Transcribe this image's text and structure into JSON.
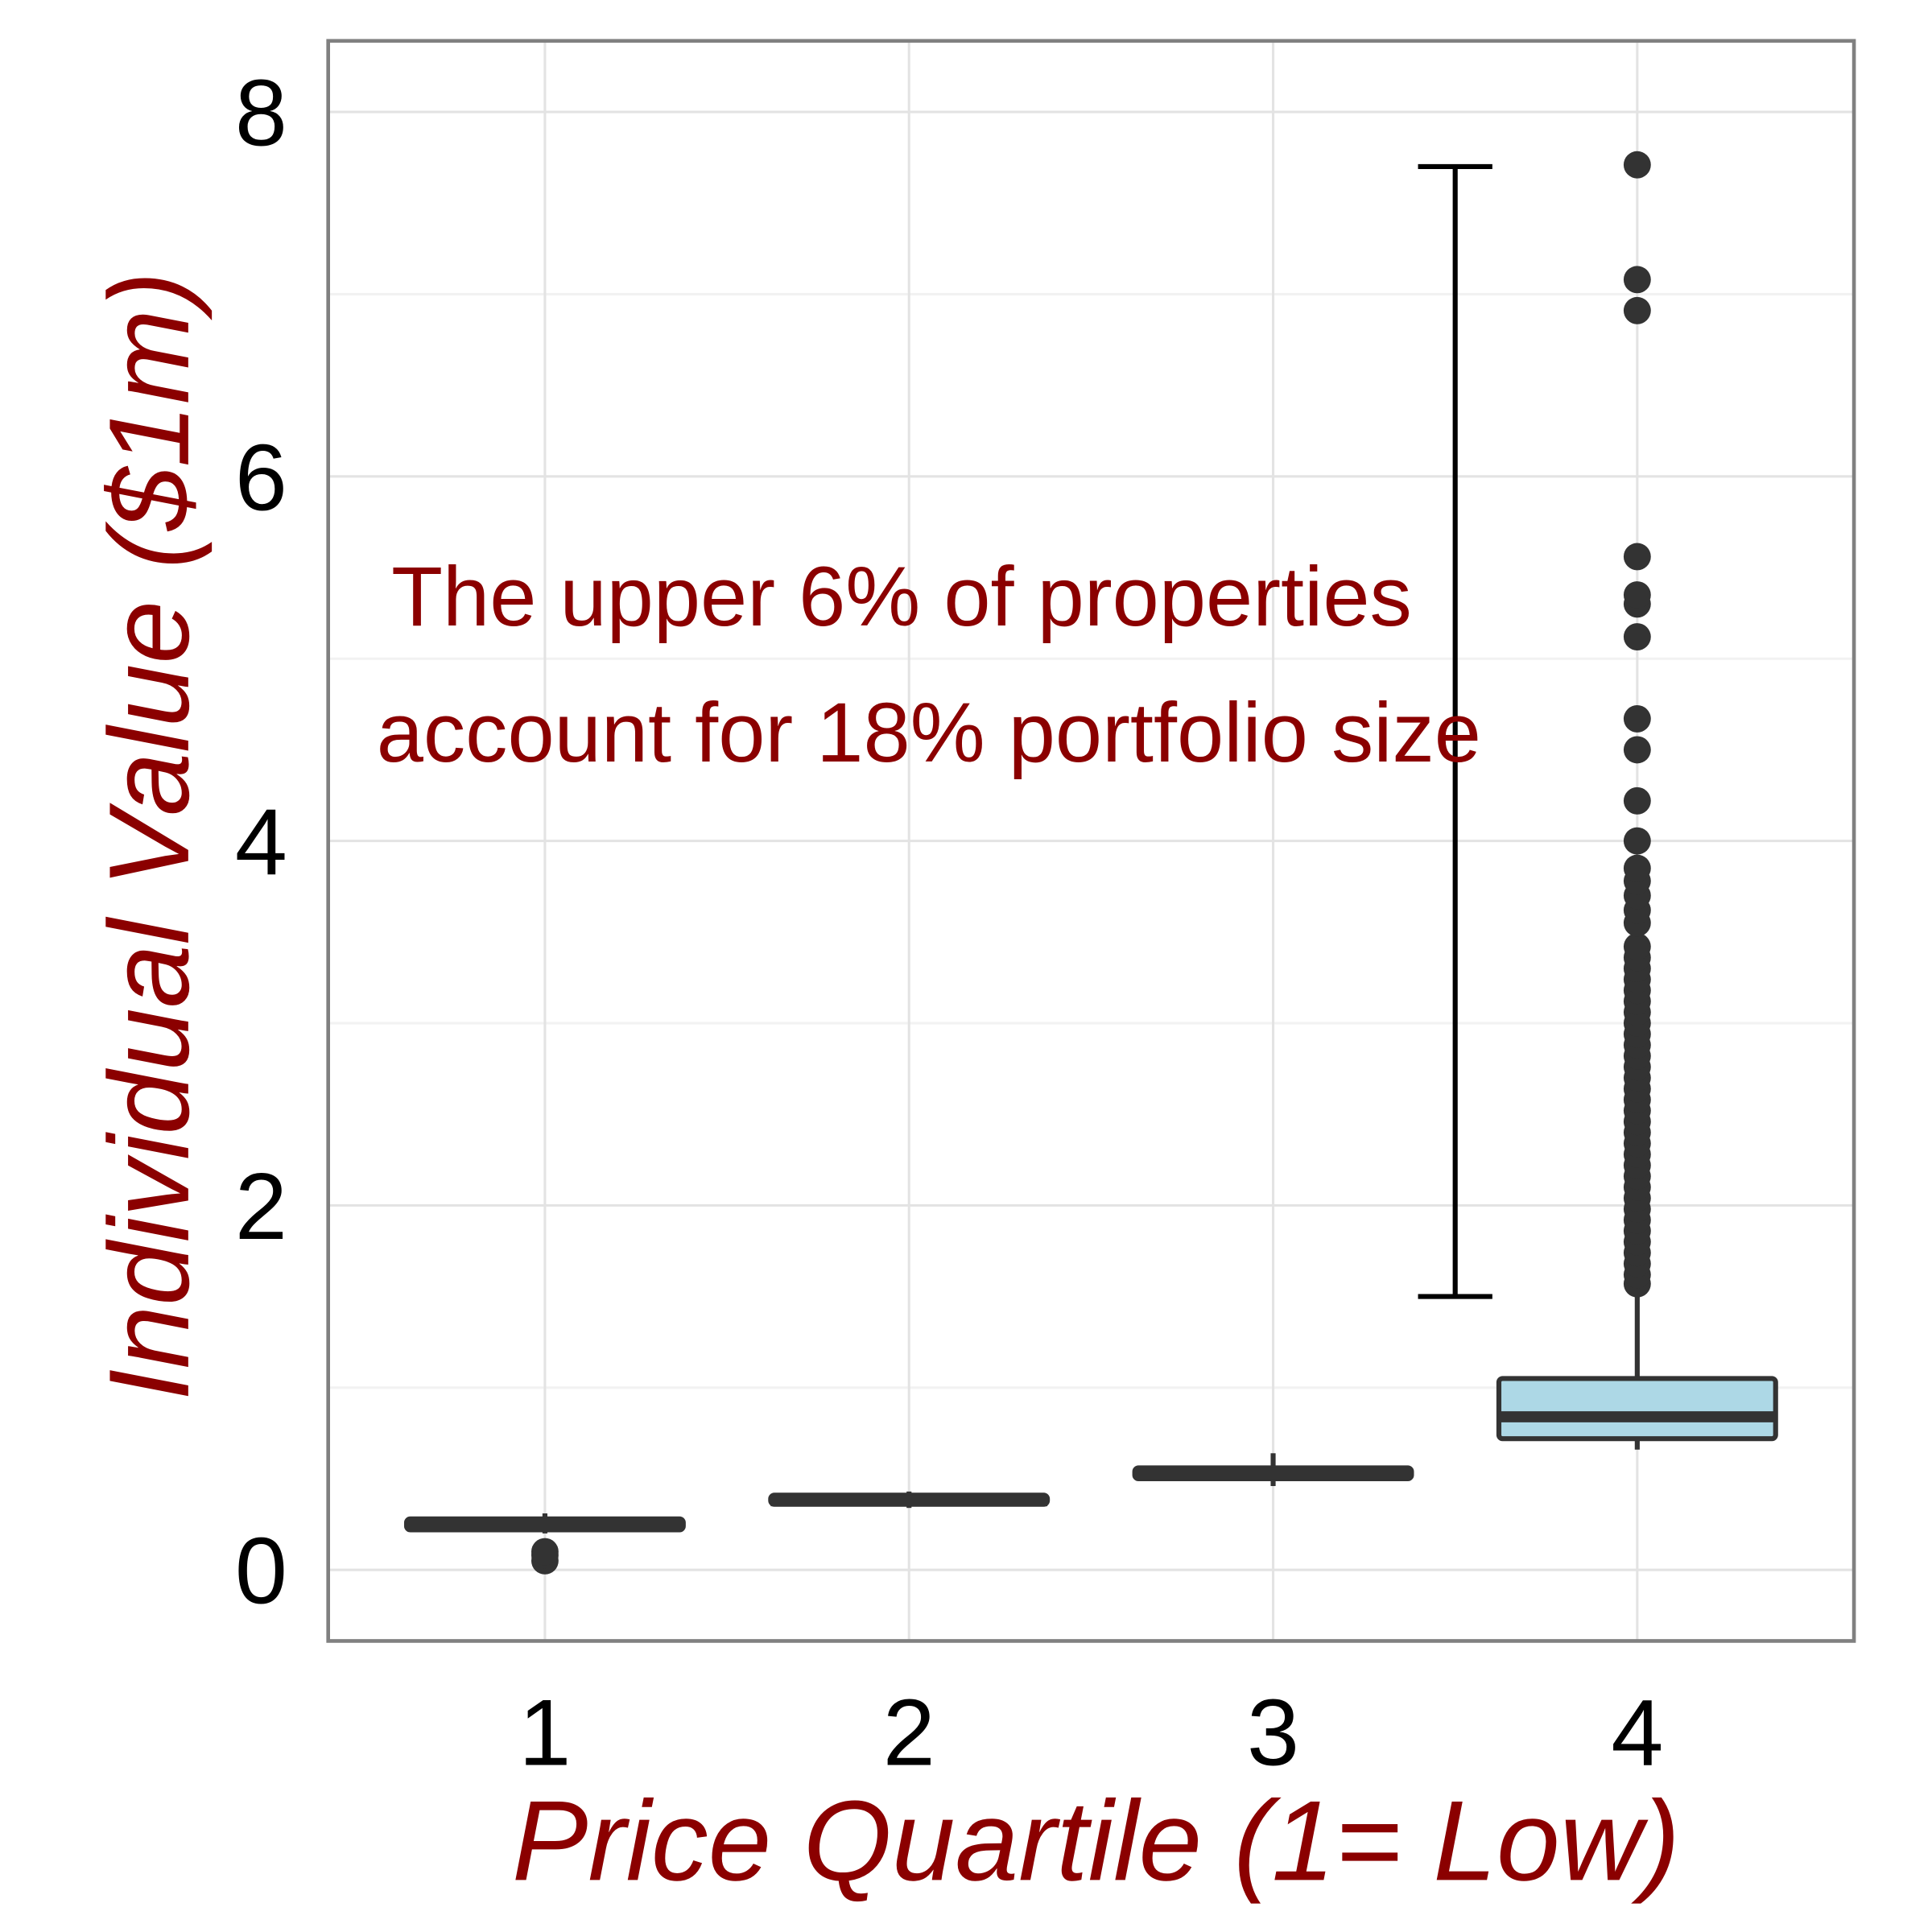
{
  "chart_data": {
    "type": "box",
    "x_label": "Price Quartile (1= Low)",
    "y_label": "Individual Value ($1m)",
    "categories": [
      "1",
      "2",
      "3",
      "4"
    ],
    "boxes": [
      {
        "whisker_low": 0.2,
        "q1": 0.22,
        "median": 0.25,
        "q3": 0.28,
        "whisker_high": 0.31,
        "outliers": [
          0.05,
          0.08,
          0.1
        ]
      },
      {
        "whisker_low": 0.34,
        "q1": 0.36,
        "median": 0.38,
        "q3": 0.41,
        "whisker_high": 0.43,
        "outliers": []
      },
      {
        "whisker_low": 0.46,
        "q1": 0.5,
        "median": 0.53,
        "q3": 0.56,
        "whisker_high": 0.64,
        "outliers": []
      },
      {
        "whisker_low": 0.66,
        "q1": 0.72,
        "median": 0.84,
        "q3": 1.05,
        "whisker_high": 1.54,
        "outliers": [
          1.57,
          1.62,
          1.68,
          1.74,
          1.8,
          1.86,
          1.92,
          1.98,
          2.04,
          2.1,
          2.16,
          2.22,
          2.28,
          2.34,
          2.4,
          2.46,
          2.52,
          2.58,
          2.64,
          2.7,
          2.76,
          2.82,
          2.88,
          2.94,
          3.0,
          3.06,
          3.12,
          3.18,
          3.24,
          3.3,
          3.36,
          3.42,
          3.55,
          3.62,
          3.7,
          3.78,
          3.85,
          4.0,
          4.22,
          4.5,
          4.67,
          5.12,
          5.3,
          5.35,
          5.56,
          6.91,
          7.08,
          7.71
        ]
      }
    ],
    "box_color": "#add8e6",
    "ylim": [
      -0.39,
      8.39
    ],
    "yticks": [
      0,
      2,
      4,
      6,
      8
    ],
    "y_minor_ticks": [
      1,
      3,
      5,
      7
    ],
    "grid": true,
    "annotation": [
      "The upper 6% of properties",
      "account for 18% portfolio size"
    ],
    "range_bar": {
      "position": 3.5,
      "low": 1.5,
      "high": 7.7
    }
  }
}
